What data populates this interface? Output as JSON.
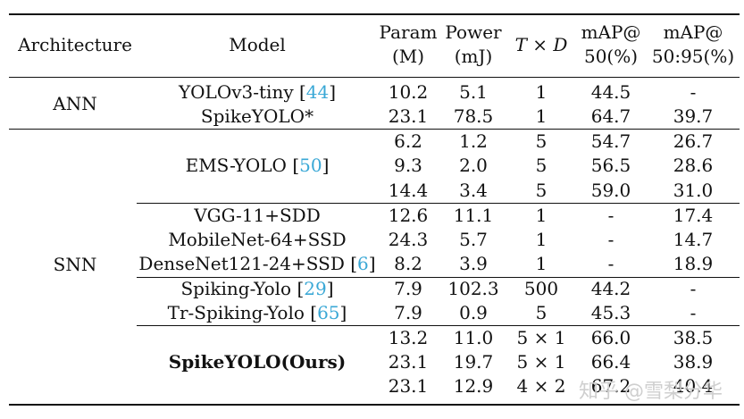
{
  "header": {
    "architecture": "Architecture",
    "model": "Model",
    "param_line1": "Param",
    "param_line2": "(M)",
    "power_line1": "Power",
    "power_line2": "(mJ)",
    "txd": "T × D",
    "map50_line1": "mAP@",
    "map50_line2": "50(%)",
    "map5095_line1": "mAP@",
    "map5095_line2": "50:95(%)"
  },
  "groups": {
    "ann": "ANN",
    "snn": "SNN"
  },
  "rows": [
    {
      "model": "YOLOv3-tiny ",
      "cite": "44",
      "param": "10.2",
      "power": "5.1",
      "td": "1",
      "m50": "44.5",
      "m5095": "-"
    },
    {
      "model": "SpikeYOLO*",
      "cite": "",
      "param": "23.1",
      "power": "78.5",
      "td": "1",
      "m50": "64.7",
      "m5095": "39.7"
    },
    {
      "model": "",
      "cite": "",
      "param": "6.2",
      "power": "1.2",
      "td": "5",
      "m50": "54.7",
      "m5095": "26.7"
    },
    {
      "model": "EMS-YOLO ",
      "cite": "50",
      "param": "9.3",
      "power": "2.0",
      "td": "5",
      "m50": "56.5",
      "m5095": "28.6"
    },
    {
      "model": "",
      "cite": "",
      "param": "14.4",
      "power": "3.4",
      "td": "5",
      "m50": "59.0",
      "m5095": "31.0"
    },
    {
      "model": "VGG-11+SDD",
      "cite": "",
      "param": "12.6",
      "power": "11.1",
      "td": "1",
      "m50": "-",
      "m5095": "17.4"
    },
    {
      "model": "MobileNet-64+SSD",
      "cite": "",
      "param": "24.3",
      "power": "5.7",
      "td": "1",
      "m50": "-",
      "m5095": "14.7"
    },
    {
      "model": "DenseNet121-24+SSD ",
      "cite": "6",
      "param": "8.2",
      "power": "3.9",
      "td": "1",
      "m50": "-",
      "m5095": "18.9"
    },
    {
      "model": "Spiking-Yolo ",
      "cite": "29",
      "param": "7.9",
      "power": "102.3",
      "td": "500",
      "m50": "44.2",
      "m5095": "-"
    },
    {
      "model": "Tr-Spiking-Yolo ",
      "cite": "65",
      "param": "7.9",
      "power": "0.9",
      "td": "5",
      "m50": "45.3",
      "m5095": "-"
    },
    {
      "model": "",
      "cite": "",
      "param": "13.2",
      "power": "11.0",
      "td": "5 × 1",
      "m50": "66.0",
      "m5095": "38.5"
    },
    {
      "model": "SpikeYOLO(Ours)",
      "cite": "",
      "param": "23.1",
      "power": "19.7",
      "td": "5 × 1",
      "m50": "66.4",
      "m5095": "38.9"
    },
    {
      "model": "",
      "cite": "",
      "param": "23.1",
      "power": "12.9",
      "td": "4 × 2",
      "m50": "67.2",
      "m5095": "40.4"
    }
  ],
  "watermark": "知乎 @雪梨分华"
}
